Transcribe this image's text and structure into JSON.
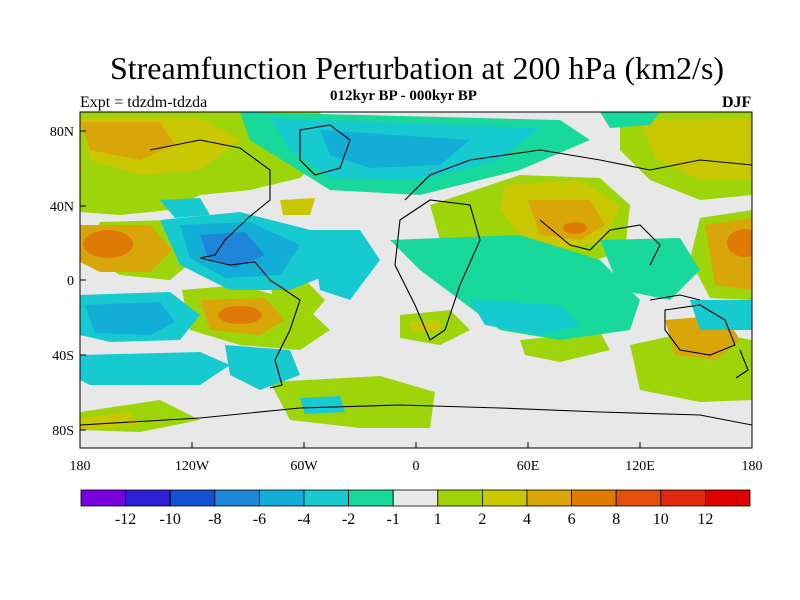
{
  "title": "Streamfunction Perturbation at 200 hPa (km2/s)",
  "subtitle": "012kyr BP - 000kyr BP",
  "experiment": "Expt = tdzdm-tdzda",
  "season": "DJF",
  "latitude_ticks": [
    "80N",
    "40N",
    "0",
    "40S",
    "80S"
  ],
  "longitude_ticks": [
    "180",
    "120W",
    "60W",
    "0",
    "60E",
    "120E",
    "180"
  ],
  "colorbar": {
    "labels": [
      "-12",
      "-10",
      "-8",
      "-6",
      "-4",
      "-2",
      "-1",
      "1",
      "2",
      "4",
      "6",
      "8",
      "10",
      "12"
    ],
    "colors": [
      "#7b00e0",
      "#2d1fd6",
      "#1450d2",
      "#1e86d8",
      "#12aed8",
      "#16cad0",
      "#19d89b",
      "#e8e8e8",
      "#9ed40a",
      "#c9c800",
      "#d9a60a",
      "#e07a06",
      "#e2500a",
      "#e0280e",
      "#e00000"
    ]
  }
}
